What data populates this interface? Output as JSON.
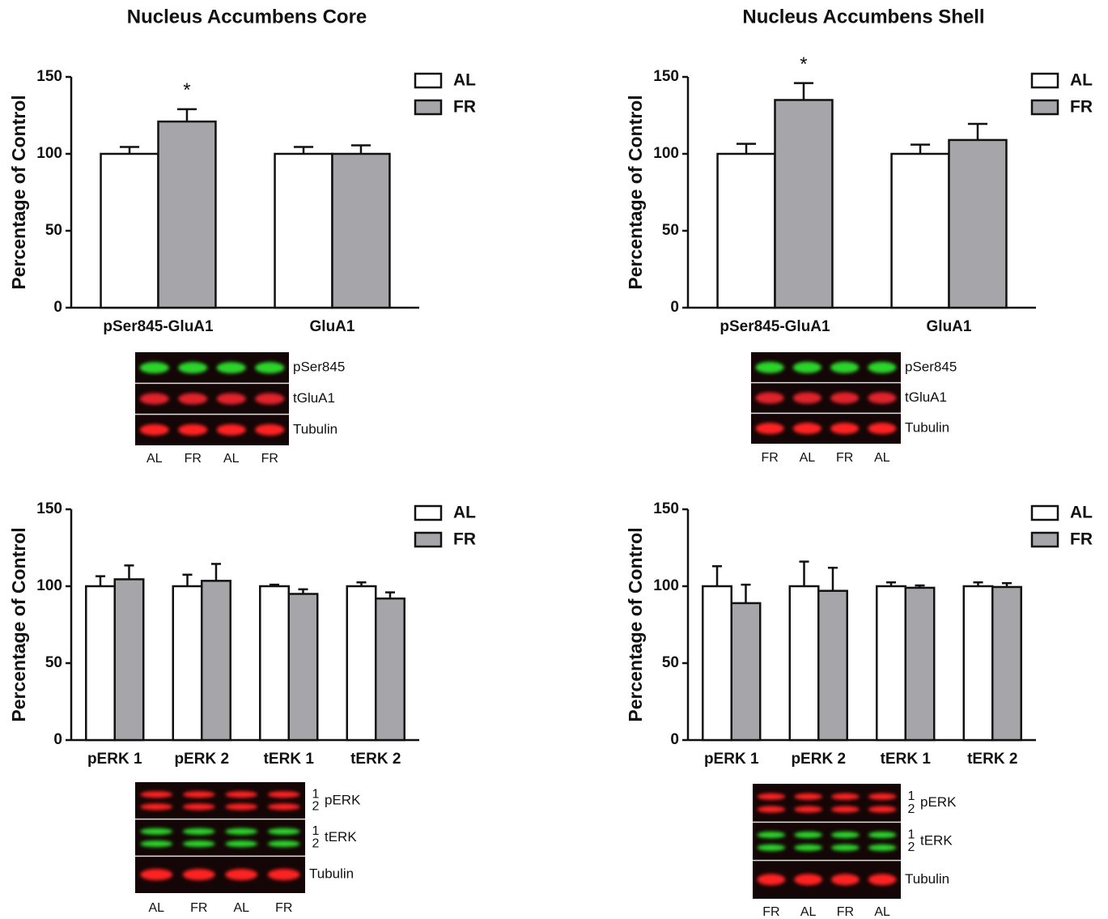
{
  "chart_data": [
    {
      "type": "bar",
      "title": "Nucleus Accumbens Core",
      "ylabel": "Percentage of Control",
      "categories": [
        "pSer845-GluA1",
        "GluA1"
      ],
      "series": [
        {
          "name": "AL",
          "color": "#ffffff",
          "values": [
            100,
            100
          ],
          "errors": [
            4.5,
            4.5
          ]
        },
        {
          "name": "FR",
          "color": "#a6a6aa",
          "values": [
            121,
            100
          ],
          "errors": [
            8,
            5.5
          ]
        }
      ],
      "ylim": [
        0,
        150
      ],
      "yticks": [
        0,
        50,
        100,
        150
      ],
      "legend": "top-right",
      "annotations": [
        {
          "text": "*",
          "category": "pSer845-GluA1",
          "series": "FR"
        }
      ]
    },
    {
      "type": "bar",
      "title": "Nucleus Accumbens Shell",
      "ylabel": "Percentage of Control",
      "categories": [
        "pSer845-GluA1",
        "GluA1"
      ],
      "series": [
        {
          "name": "AL",
          "color": "#ffffff",
          "values": [
            100,
            100
          ],
          "errors": [
            6.5,
            6
          ]
        },
        {
          "name": "FR",
          "color": "#a6a6aa",
          "values": [
            135,
            109
          ],
          "errors": [
            11,
            10.5
          ]
        }
      ],
      "ylim": [
        0,
        150
      ],
      "yticks": [
        0,
        50,
        100,
        150
      ],
      "legend": "top-right",
      "annotations": [
        {
          "text": "*",
          "category": "pSer845-GluA1",
          "series": "FR"
        }
      ]
    },
    {
      "type": "bar",
      "ylabel": "Percentage of Control",
      "categories": [
        "pERK 1",
        "pERK 2",
        "tERK 1",
        "tERK 2"
      ],
      "series": [
        {
          "name": "AL",
          "color": "#ffffff",
          "values": [
            100,
            100,
            100,
            100
          ],
          "errors": [
            6.5,
            7.5,
            1,
            2.5
          ]
        },
        {
          "name": "FR",
          "color": "#a6a6aa",
          "values": [
            104.5,
            103.5,
            95,
            92
          ],
          "errors": [
            9,
            11,
            3,
            4
          ]
        }
      ],
      "ylim": [
        0,
        150
      ],
      "yticks": [
        0,
        50,
        100,
        150
      ],
      "legend": "top-right"
    },
    {
      "type": "bar",
      "ylabel": "Percentage of Control",
      "categories": [
        "pERK 1",
        "pERK 2",
        "tERK 1",
        "tERK 2"
      ],
      "series": [
        {
          "name": "AL",
          "color": "#ffffff",
          "values": [
            100,
            100,
            100,
            100
          ],
          "errors": [
            13,
            16,
            2.5,
            2.5
          ]
        },
        {
          "name": "FR",
          "color": "#a6a6aa",
          "values": [
            89,
            97,
            99,
            99.5
          ],
          "errors": [
            12,
            15,
            1.5,
            2.5
          ]
        }
      ],
      "ylim": [
        0,
        150
      ],
      "yticks": [
        0,
        50,
        100,
        150
      ],
      "legend": "top-right"
    }
  ],
  "blots": [
    {
      "rows": [
        {
          "label": "pSer845",
          "color": "#2bd42b"
        },
        {
          "label": "tGluA1",
          "color": "#e0202a"
        },
        {
          "label": "Tubulin",
          "color": "#ff2020"
        }
      ],
      "lanes": [
        "AL",
        "FR",
        "AL",
        "FR"
      ]
    },
    {
      "rows": [
        {
          "label": "pSer845",
          "color": "#2bd42b"
        },
        {
          "label": "tGluA1",
          "color": "#e0202a"
        },
        {
          "label": "Tubulin",
          "color": "#ff2020"
        }
      ],
      "lanes": [
        "FR",
        "AL",
        "FR",
        "AL"
      ]
    },
    {
      "rows": [
        {
          "label": "pERK",
          "color": "#ff2020",
          "bands": [
            "1",
            "2"
          ]
        },
        {
          "label": "tERK",
          "color": "#2bd42b",
          "bands": [
            "1",
            "2"
          ]
        },
        {
          "label": "Tubulin",
          "color": "#ff2020"
        }
      ],
      "lanes": [
        "AL",
        "FR",
        "AL",
        "FR"
      ]
    },
    {
      "rows": [
        {
          "label": "pERK",
          "color": "#ff2020",
          "bands": [
            "1",
            "2"
          ]
        },
        {
          "label": "tERK",
          "color": "#2bd42b",
          "bands": [
            "1",
            "2"
          ]
        },
        {
          "label": "Tubulin",
          "color": "#ff2020"
        }
      ],
      "lanes": [
        "FR",
        "AL",
        "FR",
        "AL"
      ]
    }
  ]
}
